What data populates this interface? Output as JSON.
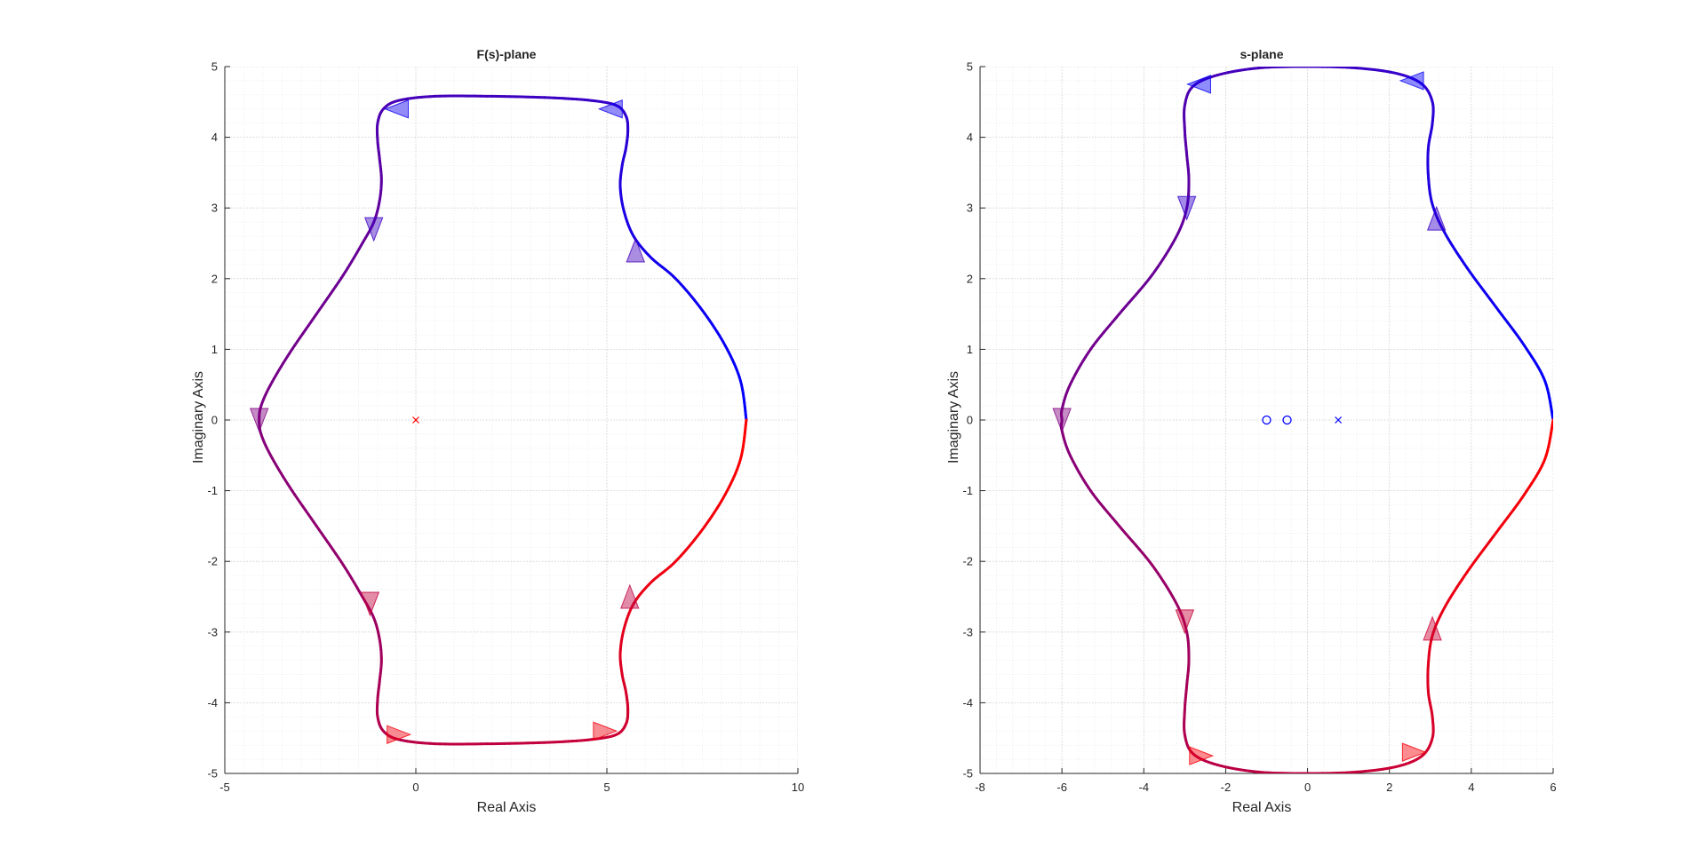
{
  "chart_data": [
    {
      "type": "line",
      "title": "F(s)-plane",
      "xlabel": "Real Axis",
      "ylabel": "Imaginary Axis",
      "xlim": [
        -5,
        10
      ],
      "ylim": [
        -5,
        5
      ],
      "xticks": [
        -5,
        0,
        5,
        10
      ],
      "yticks": [
        -5,
        -4,
        -3,
        -2,
        -1,
        0,
        1,
        2,
        3,
        4,
        5
      ],
      "grid": true,
      "minor_grid": true,
      "curve_start_color": "#0000ff",
      "curve_end_color": "#ff0000",
      "contour_upper": [
        [
          8.65,
          0.0
        ],
        [
          8.5,
          0.55
        ],
        [
          8.1,
          1.05
        ],
        [
          7.5,
          1.55
        ],
        [
          6.8,
          2.0
        ],
        [
          6.15,
          2.3
        ],
        [
          5.7,
          2.6
        ],
        [
          5.45,
          2.95
        ],
        [
          5.35,
          3.3
        ],
        [
          5.4,
          3.6
        ],
        [
          5.5,
          3.85
        ],
        [
          5.55,
          4.1
        ],
        [
          5.5,
          4.3
        ],
        [
          5.25,
          4.45
        ],
        [
          4.6,
          4.52
        ],
        [
          3.5,
          4.56
        ],
        [
          2.0,
          4.58
        ],
        [
          0.5,
          4.58
        ],
        [
          -0.45,
          4.52
        ],
        [
          -0.85,
          4.4
        ],
        [
          -1.0,
          4.2
        ],
        [
          -1.0,
          3.95
        ],
        [
          -0.95,
          3.7
        ],
        [
          -0.9,
          3.4
        ],
        [
          -0.95,
          3.1
        ],
        [
          -1.1,
          2.8
        ],
        [
          -1.4,
          2.5
        ],
        [
          -1.9,
          2.05
        ],
        [
          -2.6,
          1.5
        ],
        [
          -3.3,
          0.95
        ],
        [
          -3.8,
          0.5
        ],
        [
          -4.05,
          0.2
        ],
        [
          -4.1,
          0.0
        ]
      ],
      "markers": [
        {
          "x": 0,
          "y": 0,
          "symbol": "x",
          "color": "#ff0000"
        }
      ],
      "arrows": [
        {
          "x": -0.5,
          "y": 4.4,
          "dir": "left"
        },
        {
          "x": 5.1,
          "y": 4.4,
          "dir": "left"
        },
        {
          "x": -1.1,
          "y": 2.7,
          "dir": "down"
        },
        {
          "x": 5.75,
          "y": 2.4,
          "dir": "up"
        },
        {
          "x": -4.1,
          "y": 0.0,
          "dir": "down"
        },
        {
          "x": -1.2,
          "y": -2.6,
          "dir": "down"
        },
        {
          "x": 5.6,
          "y": -2.5,
          "dir": "up"
        },
        {
          "x": -0.45,
          "y": -4.45,
          "dir": "right"
        },
        {
          "x": 4.95,
          "y": -4.4,
          "dir": "right"
        }
      ]
    },
    {
      "type": "line",
      "title": "s-plane",
      "xlabel": "Real Axis",
      "ylabel": "Imaginary Axis",
      "xlim": [
        -8,
        6
      ],
      "ylim": [
        -5,
        5
      ],
      "xticks": [
        -8,
        -6,
        -4,
        -2,
        0,
        2,
        4,
        6
      ],
      "yticks": [
        -5,
        -4,
        -3,
        -2,
        -1,
        0,
        1,
        2,
        3,
        4,
        5
      ],
      "grid": true,
      "minor_grid": true,
      "curve_start_color": "#0000ff",
      "curve_end_color": "#ff0000",
      "contour_upper": [
        [
          6.0,
          0.0
        ],
        [
          5.8,
          0.55
        ],
        [
          5.3,
          1.05
        ],
        [
          4.6,
          1.6
        ],
        [
          3.9,
          2.15
        ],
        [
          3.35,
          2.65
        ],
        [
          3.05,
          3.05
        ],
        [
          2.95,
          3.45
        ],
        [
          2.95,
          3.85
        ],
        [
          3.05,
          4.2
        ],
        [
          3.05,
          4.5
        ],
        [
          2.8,
          4.75
        ],
        [
          2.2,
          4.9
        ],
        [
          1.2,
          4.98
        ],
        [
          0.0,
          5.0
        ],
        [
          -1.2,
          4.98
        ],
        [
          -2.2,
          4.88
        ],
        [
          -2.8,
          4.72
        ],
        [
          -3.0,
          4.45
        ],
        [
          -3.0,
          4.1
        ],
        [
          -2.95,
          3.75
        ],
        [
          -2.9,
          3.4
        ],
        [
          -2.95,
          3.0
        ],
        [
          -3.2,
          2.6
        ],
        [
          -3.8,
          2.05
        ],
        [
          -4.6,
          1.5
        ],
        [
          -5.3,
          1.0
        ],
        [
          -5.8,
          0.5
        ],
        [
          -6.0,
          0.15
        ],
        [
          -6.0,
          0.0
        ]
      ],
      "markers": [
        {
          "x": -1.0,
          "y": 0,
          "symbol": "o",
          "color": "#0000ff"
        },
        {
          "x": -0.5,
          "y": 0,
          "symbol": "o",
          "color": "#0000ff"
        },
        {
          "x": 0.75,
          "y": 0,
          "symbol": "x",
          "color": "#0000ff"
        }
      ],
      "arrows": [
        {
          "x": -2.65,
          "y": 4.75,
          "dir": "left"
        },
        {
          "x": 2.55,
          "y": 4.8,
          "dir": "left"
        },
        {
          "x": -2.95,
          "y": 3.0,
          "dir": "down"
        },
        {
          "x": 3.15,
          "y": 2.85,
          "dir": "up"
        },
        {
          "x": -6.0,
          "y": 0.0,
          "dir": "down"
        },
        {
          "x": -3.0,
          "y": -2.85,
          "dir": "down"
        },
        {
          "x": 3.05,
          "y": -2.95,
          "dir": "up"
        },
        {
          "x": -2.6,
          "y": -4.75,
          "dir": "right"
        },
        {
          "x": 2.6,
          "y": -4.7,
          "dir": "right"
        }
      ]
    }
  ]
}
